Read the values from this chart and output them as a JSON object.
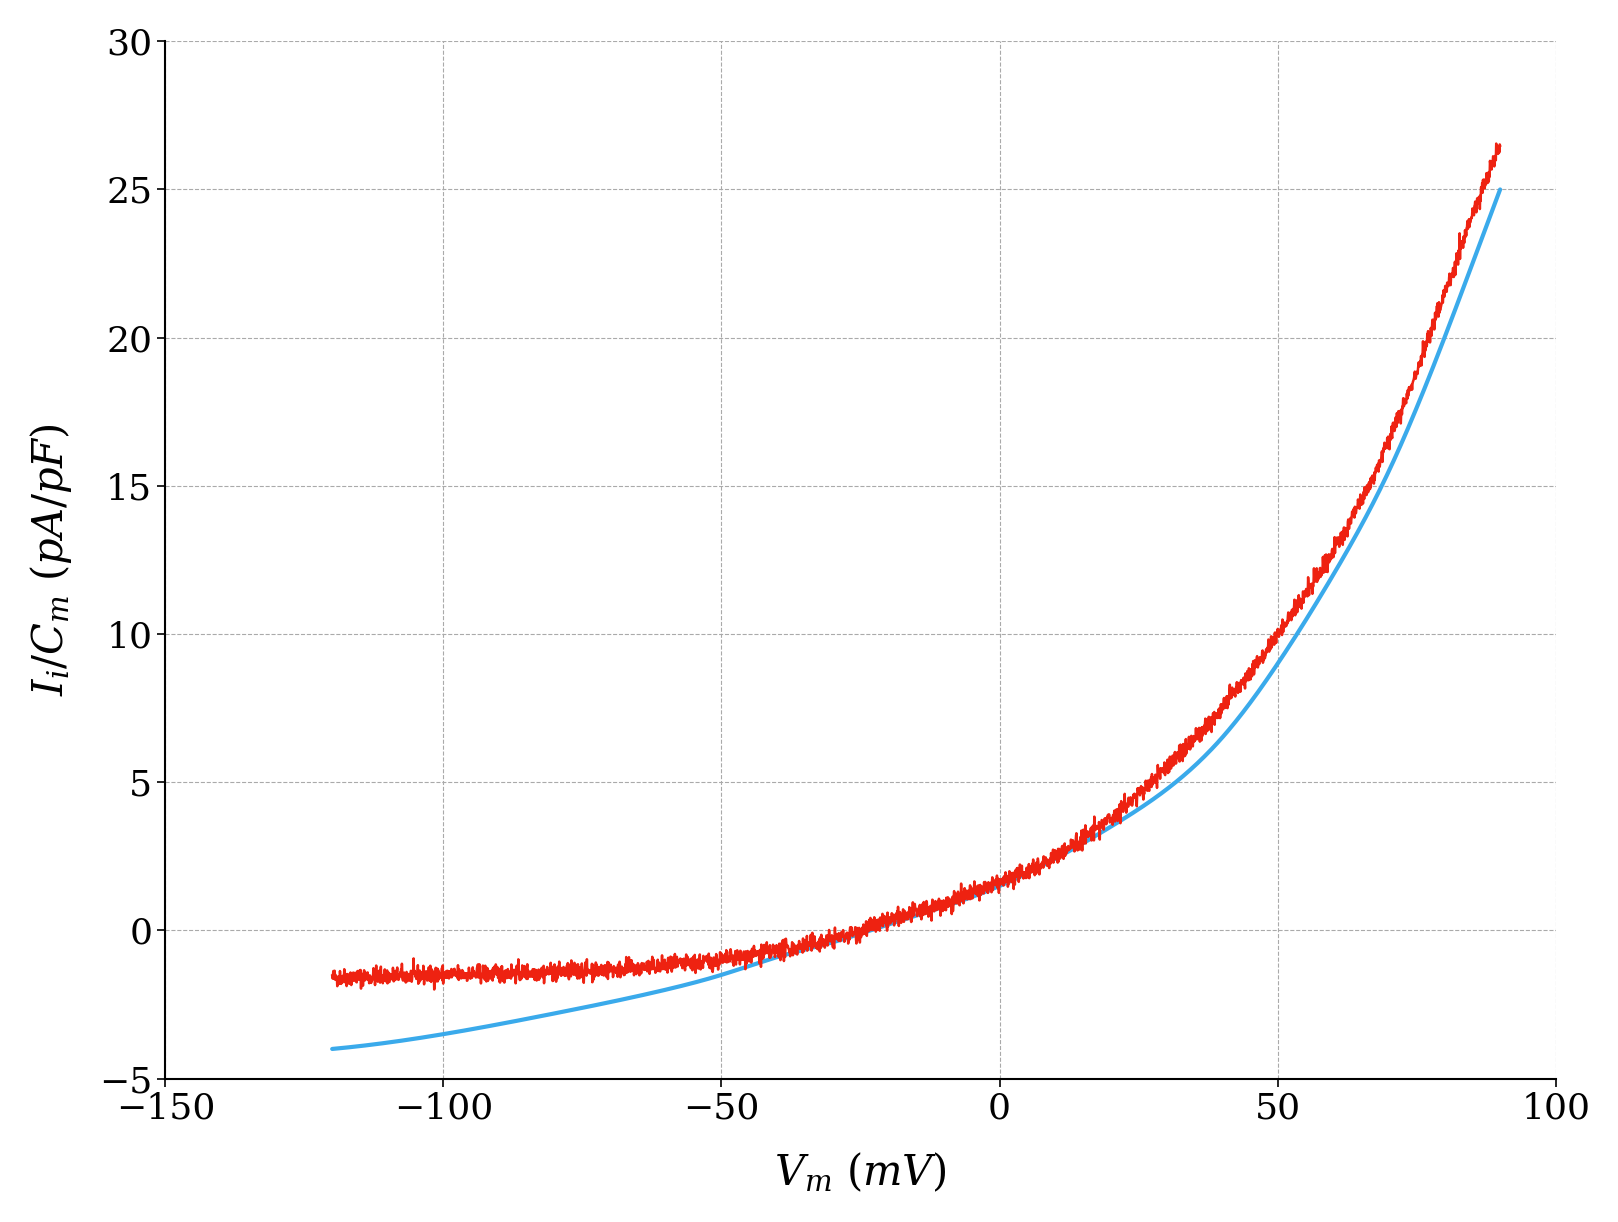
{
  "xlim": [
    -150,
    100
  ],
  "ylim": [
    -5,
    30
  ],
  "xticks": [
    -150,
    -100,
    -50,
    0,
    50,
    100
  ],
  "yticks": [
    -5,
    0,
    5,
    10,
    15,
    20,
    25,
    30
  ],
  "xlabel": "$V_m$ $(mV)$",
  "ylabel": "$I_i/C_m$ $(pA/pF)$",
  "blue_color": "#3AAAEB",
  "red_color": "#EE2211",
  "background_color": "#ffffff",
  "grid_color": "#aaaaaa",
  "grid_linestyle": "--",
  "linewidth_blue": 3.0,
  "linewidth_red": 1.8,
  "label_fontsize": 30,
  "tick_fontsize": 26,
  "x_pts_blue": [
    -120,
    -100,
    -80,
    -60,
    -50,
    -40,
    -30,
    -20,
    -10,
    0,
    20,
    40,
    50,
    60,
    70,
    80,
    90
  ],
  "y_pts_blue": [
    -4.0,
    -3.5,
    -2.8,
    -2.0,
    -1.5,
    -0.9,
    -0.4,
    0.2,
    0.8,
    1.5,
    3.5,
    6.5,
    9.0,
    12.0,
    15.5,
    20.0,
    25.0
  ],
  "x_pts_red": [
    -120,
    -100,
    -80,
    -60,
    -50,
    -40,
    -30,
    -20,
    -10,
    0,
    10,
    20,
    30,
    40,
    50,
    60,
    70,
    80,
    90
  ],
  "y_pts_red": [
    -1.6,
    -1.5,
    -1.4,
    -1.2,
    -1.0,
    -0.7,
    -0.3,
    0.3,
    0.9,
    1.6,
    2.5,
    3.8,
    5.5,
    7.5,
    10.0,
    12.8,
    16.5,
    21.5,
    26.5
  ],
  "noise_seed": 42,
  "noise_std": 0.15
}
